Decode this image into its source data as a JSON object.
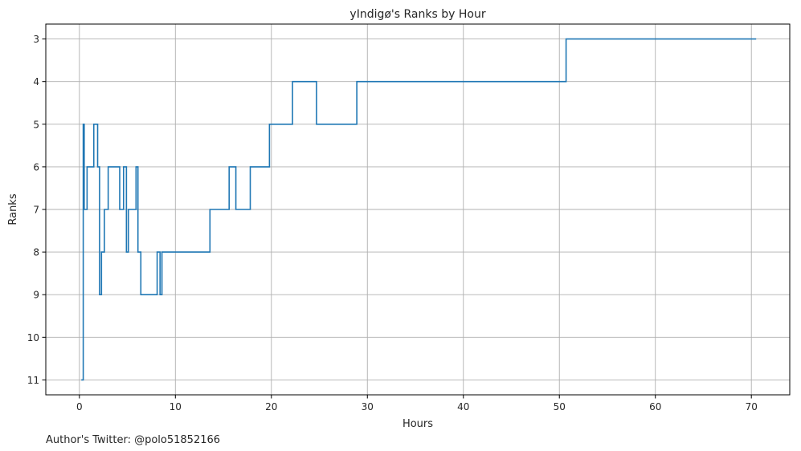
{
  "chart_data": {
    "type": "line",
    "drawstyle": "steps-post",
    "title": "yIndigø's Ranks by Hour",
    "xlabel": "Hours",
    "ylabel": "Ranks",
    "xlim": [
      -3.5,
      74
    ],
    "ylim": [
      11.35,
      2.65
    ],
    "y_inverted": true,
    "xticks": [
      0,
      10,
      20,
      30,
      40,
      50,
      60,
      70
    ],
    "yticks": [
      3,
      4,
      5,
      6,
      7,
      8,
      9,
      10,
      11
    ],
    "grid": true,
    "line_color": "#1f77b4",
    "series": [
      {
        "x": [
          0.2,
          0.4,
          0.5,
          0.8,
          1.0,
          1.5,
          1.9,
          2.1,
          2.3,
          2.6,
          3.0,
          4.2,
          4.6,
          4.9,
          5.1,
          5.9,
          6.1,
          6.4,
          8.1,
          8.4,
          8.6,
          13.6,
          15.6,
          16.3,
          17.8,
          19.8,
          22.2,
          24.7,
          28.9,
          50.7,
          70.5
        ],
        "y": [
          11,
          5,
          7,
          6,
          6,
          5,
          6,
          9,
          8,
          7,
          6,
          7,
          6,
          8,
          7,
          6,
          8,
          9,
          8,
          9,
          8,
          7,
          6,
          7,
          6,
          5,
          4,
          5,
          4,
          3,
          3
        ]
      }
    ]
  },
  "annotation": "Author's Twitter: @polo51852166",
  "colors": {
    "line": "#1f77b4",
    "grid": "#b0b0b0",
    "axes": "#000000",
    "text": "#262626"
  }
}
